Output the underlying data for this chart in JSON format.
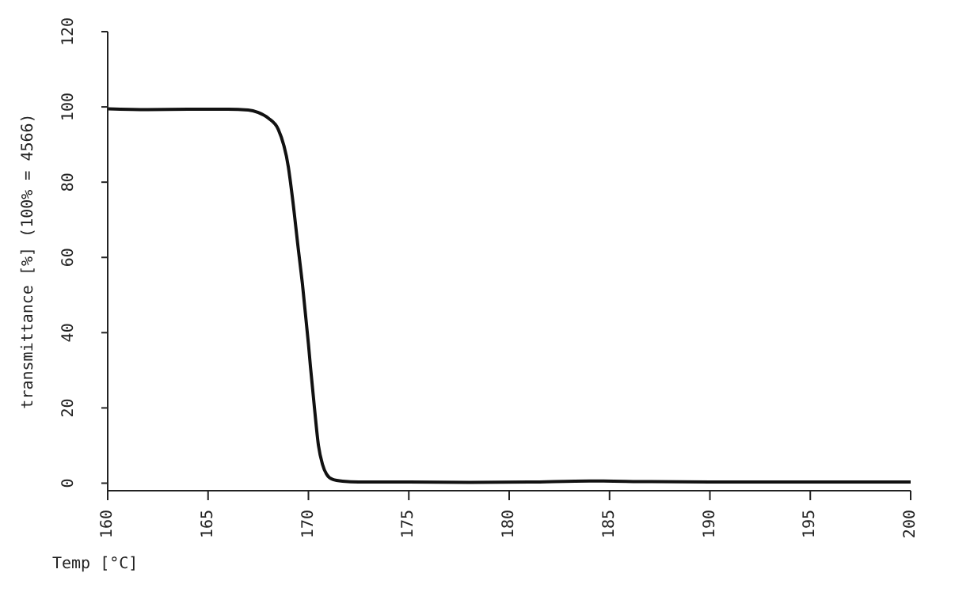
{
  "chart_data": {
    "type": "line",
    "xlabel": "Temp [°C]",
    "ylabel": "transmittance [%]   (100% = 4566)",
    "x": [
      160,
      162,
      164,
      166,
      167,
      167.5,
      168,
      168.5,
      169,
      169.2,
      169.5,
      169.7,
      170,
      170.1,
      170.3,
      170.5,
      170.7,
      170.9,
      171.2,
      171.7,
      172.5,
      175,
      178,
      181,
      184,
      187,
      190,
      195,
      200
    ],
    "series": [
      {
        "color": "#111111",
        "values": [
          99.5,
          99.3,
          99.4,
          99.4,
          99.2,
          98.5,
          97,
          94,
          84,
          76,
          62,
          53,
          37,
          31,
          20,
          10,
          5,
          2.4,
          1,
          0.5,
          0.3,
          0.3,
          0.2,
          0.3,
          0.6,
          0.4,
          0.3,
          0.3,
          0.3
        ]
      }
    ],
    "xlim": [
      160,
      200
    ],
    "xticks": [
      160,
      165,
      170,
      175,
      180,
      185,
      190,
      195,
      200
    ],
    "ylim": [
      -2,
      120
    ],
    "yticks": [
      0,
      20,
      40,
      60,
      80,
      100,
      120
    ],
    "marker": "none",
    "line_style": "solid"
  }
}
